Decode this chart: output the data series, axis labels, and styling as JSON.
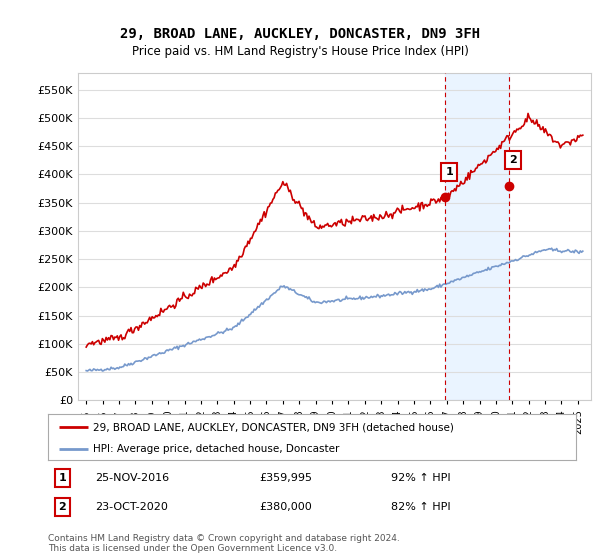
{
  "title": "29, BROAD LANE, AUCKLEY, DONCASTER, DN9 3FH",
  "subtitle": "Price paid vs. HM Land Registry's House Price Index (HPI)",
  "legend_label_red": "29, BROAD LANE, AUCKLEY, DONCASTER, DN9 3FH (detached house)",
  "legend_label_blue": "HPI: Average price, detached house, Doncaster",
  "annotation1_date": "25-NOV-2016",
  "annotation1_price": "£359,995",
  "annotation1_hpi": "92% ↑ HPI",
  "annotation1_year": 2016.9,
  "annotation1_value": 359995,
  "annotation2_date": "23-OCT-2020",
  "annotation2_price": "£380,000",
  "annotation2_hpi": "82% ↑ HPI",
  "annotation2_year": 2020.8,
  "annotation2_value": 380000,
  "footer": "Contains HM Land Registry data © Crown copyright and database right 2024.\nThis data is licensed under the Open Government Licence v3.0.",
  "background_color": "#ffffff",
  "grid_color": "#dddddd",
  "red_color": "#cc0000",
  "blue_color": "#7799cc",
  "annotation_line_color": "#cc0000",
  "shaded_color": "#ddeeff"
}
